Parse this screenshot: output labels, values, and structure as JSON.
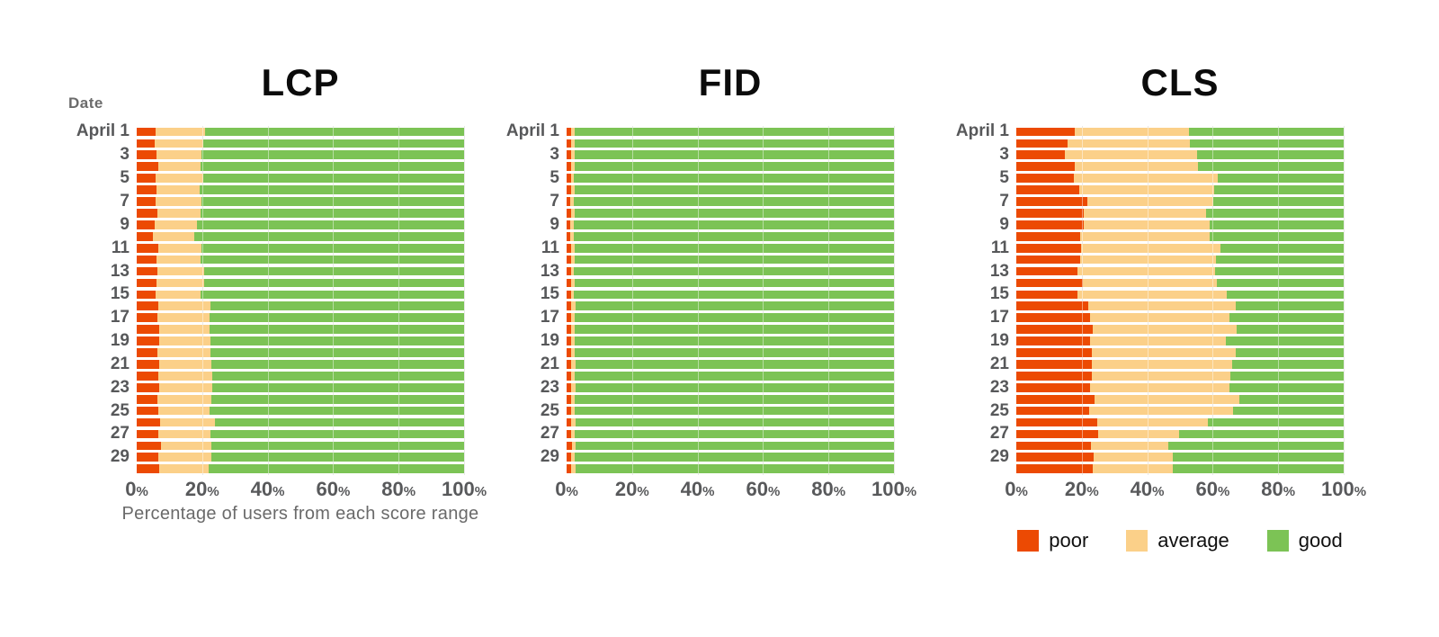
{
  "page": {
    "background": "#ffffff"
  },
  "colors": {
    "poor": "#ec4a03",
    "average": "#fbd089",
    "good": "#7cc355",
    "axis_label_gray": "#58595b",
    "caption_gray": "#6a6a6a",
    "title_black": "#0b0b0b",
    "gridline": "#d7d7d5"
  },
  "date_column_header": "Date",
  "x_axis": {
    "tick_labels": [
      "0%",
      "20%",
      "40%",
      "60%",
      "80%",
      "100%"
    ],
    "caption": "Percentage of users from each score range"
  },
  "legend": {
    "items": [
      {
        "label": "poor",
        "color_key": "poor"
      },
      {
        "label": "average",
        "color_key": "average"
      },
      {
        "label": "good",
        "color_key": "good"
      }
    ]
  },
  "chart_data": [
    {
      "type": "bar",
      "subtype": "horizontal-stacked",
      "title": "LCP",
      "xlabel": "Percentage of users from each score range",
      "ylabel": "Date",
      "xlim": [
        0,
        100
      ],
      "grid": true,
      "y_tick_labels": [
        "April 1",
        "3",
        "5",
        "7",
        "9",
        "11",
        "13",
        "15",
        "17",
        "19",
        "21",
        "23",
        "25",
        "27",
        "29"
      ],
      "days": 30,
      "series": [
        {
          "name": "poor",
          "values": [
            5.8,
            5.4,
            6.1,
            6.6,
            5.8,
            6.1,
            5.8,
            6.4,
            5.4,
            4.9,
            6.6,
            6.1,
            6.4,
            6.1,
            5.8,
            6.6,
            6.3,
            6.8,
            6.9,
            6.4,
            7.0,
            6.6,
            7.0,
            6.3,
            6.6,
            7.1,
            6.6,
            7.5,
            6.7,
            7.0
          ]
        },
        {
          "name": "average",
          "values": [
            15.0,
            14.8,
            13.8,
            13.0,
            14.4,
            13.2,
            14.0,
            13.1,
            13.0,
            12.8,
            13.3,
            13.5,
            14.2,
            14.5,
            13.7,
            16.0,
            15.9,
            15.4,
            15.7,
            16.2,
            15.7,
            16.5,
            16.1,
            16.4,
            15.6,
            16.9,
            15.8,
            15.4,
            16.0,
            15.0
          ]
        },
        {
          "name": "good",
          "values": [
            79.2,
            79.8,
            80.1,
            80.4,
            79.8,
            80.7,
            80.2,
            80.5,
            81.6,
            82.3,
            80.1,
            80.4,
            79.4,
            79.4,
            80.5,
            77.4,
            77.8,
            77.8,
            77.4,
            77.4,
            77.3,
            76.9,
            76.9,
            77.3,
            77.8,
            76.0,
            77.6,
            77.1,
            77.3,
            78.0
          ]
        }
      ]
    },
    {
      "type": "bar",
      "subtype": "horizontal-stacked",
      "title": "FID",
      "xlim": [
        0,
        100
      ],
      "grid": true,
      "y_tick_labels": [
        "April 1",
        "3",
        "5",
        "7",
        "9",
        "11",
        "13",
        "15",
        "17",
        "19",
        "21",
        "23",
        "25",
        "27",
        "29"
      ],
      "days": 30,
      "series": [
        {
          "name": "poor",
          "values": [
            1.4,
            1.3,
            1.3,
            1.4,
            1.3,
            1.3,
            1.2,
            1.3,
            1.2,
            1.2,
            1.4,
            1.3,
            1.3,
            1.4,
            1.3,
            1.5,
            1.4,
            1.4,
            1.5,
            1.4,
            1.5,
            1.4,
            1.5,
            1.4,
            1.4,
            1.5,
            1.4,
            1.6,
            1.4,
            1.5
          ]
        },
        {
          "name": "average",
          "values": [
            1.2,
            1.1,
            1.2,
            1.1,
            1.0,
            1.1,
            1.0,
            1.1,
            1.0,
            0.9,
            1.2,
            1.1,
            1.0,
            1.1,
            1.0,
            1.2,
            1.1,
            1.2,
            1.1,
            1.2,
            1.2,
            1.1,
            1.2,
            1.1,
            1.2,
            1.3,
            1.1,
            1.2,
            1.2,
            1.2
          ]
        },
        {
          "name": "good",
          "values": [
            97.4,
            97.6,
            97.5,
            97.5,
            97.7,
            97.6,
            97.8,
            97.6,
            97.8,
            97.9,
            97.4,
            97.6,
            97.7,
            97.5,
            97.7,
            97.3,
            97.5,
            97.4,
            97.4,
            97.4,
            97.3,
            97.5,
            97.3,
            97.5,
            97.4,
            97.2,
            97.5,
            97.2,
            97.4,
            97.3
          ]
        }
      ]
    },
    {
      "type": "bar",
      "subtype": "horizontal-stacked",
      "title": "CLS",
      "xlim": [
        0,
        100
      ],
      "grid": true,
      "y_tick_labels": [
        "April 1",
        "3",
        "5",
        "7",
        "9",
        "11",
        "13",
        "15",
        "17",
        "19",
        "21",
        "23",
        "25",
        "27",
        "29"
      ],
      "days": 30,
      "series": [
        {
          "name": "poor",
          "values": [
            17.9,
            15.6,
            14.7,
            17.9,
            17.7,
            19.3,
            21.6,
            20.7,
            20.7,
            19.5,
            19.7,
            19.5,
            18.6,
            20.4,
            18.8,
            22.0,
            22.5,
            23.4,
            22.5,
            23.0,
            23.0,
            23.2,
            22.5,
            23.9,
            22.2,
            24.8,
            25.0,
            22.8,
            23.7,
            23.4
          ]
        },
        {
          "name": "average",
          "values": [
            34.9,
            37.5,
            40.4,
            37.7,
            43.8,
            41.1,
            38.5,
            37.3,
            38.3,
            39.5,
            42.6,
            41.6,
            42.2,
            40.8,
            45.4,
            44.9,
            42.7,
            43.9,
            41.6,
            44.0,
            42.9,
            42.3,
            42.7,
            44.2,
            43.9,
            33.7,
            24.6,
            23.6,
            24.0,
            24.3
          ]
        },
        {
          "name": "good",
          "values": [
            47.2,
            46.9,
            44.9,
            44.4,
            38.5,
            39.6,
            39.9,
            42.0,
            41.0,
            41.0,
            37.7,
            38.9,
            39.2,
            38.8,
            35.8,
            33.1,
            34.8,
            32.7,
            35.9,
            33.0,
            34.1,
            34.5,
            34.8,
            31.9,
            33.9,
            41.5,
            50.4,
            53.6,
            52.3,
            52.3
          ]
        }
      ]
    }
  ]
}
